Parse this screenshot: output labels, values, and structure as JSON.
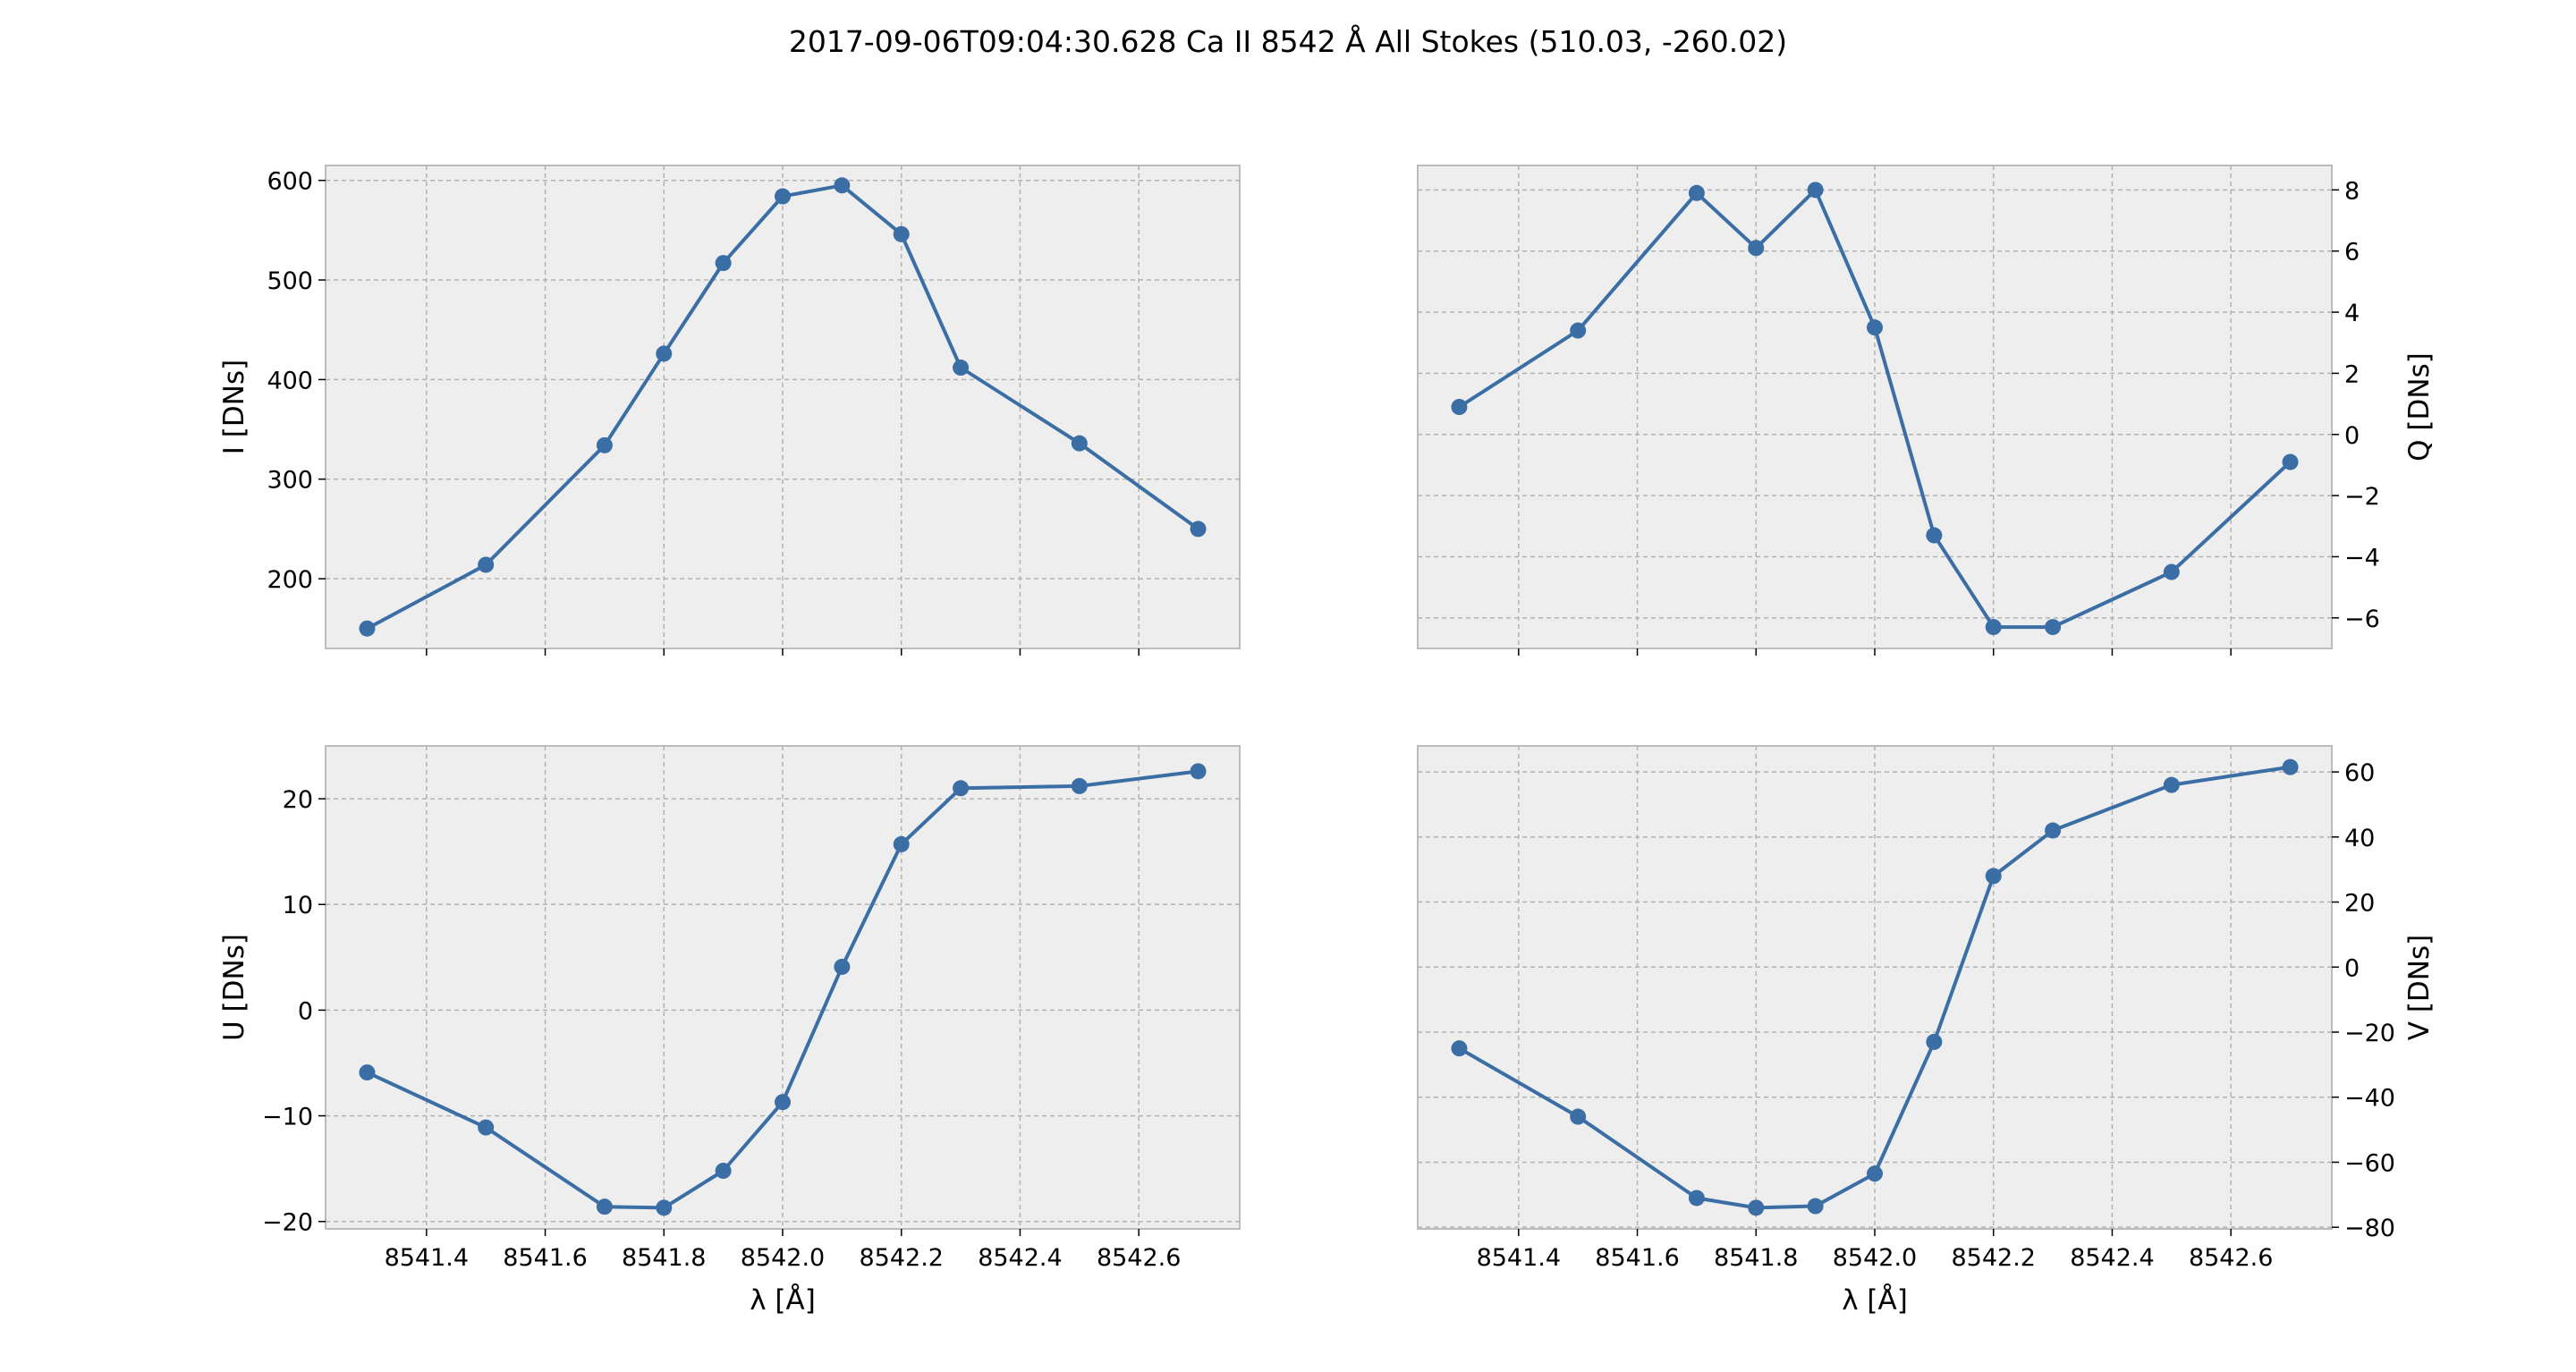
{
  "title": "2017-09-06T09:04:30.628 Ca II 8542 Å All Stokes (510.03, -260.02)",
  "colors": {
    "series": "#3b6ea5",
    "background": "#eeeeee",
    "grid": "#b2b2b2"
  },
  "chart_data": [
    {
      "type": "line",
      "ylabel": "I [DNs]",
      "xlabel": "",
      "y_axis_side": "left",
      "show_xtick_labels": false,
      "xlim": [
        8541.23,
        8542.77
      ],
      "ylim": [
        130,
        615
      ],
      "xticks": [
        8541.4,
        8541.6,
        8541.8,
        8542.0,
        8542.2,
        8542.4,
        8542.6
      ],
      "yticks": [
        200,
        300,
        400,
        500,
        600
      ],
      "grid": true,
      "x": [
        8541.3,
        8541.5,
        8541.7,
        8541.8,
        8541.9,
        8542.0,
        8542.1,
        8542.2,
        8542.3,
        8542.5,
        8542.7
      ],
      "y": [
        150,
        214,
        334,
        426,
        517,
        584,
        595,
        546,
        412,
        336,
        250
      ]
    },
    {
      "type": "line",
      "ylabel": "Q [DNs]",
      "xlabel": "",
      "y_axis_side": "right",
      "show_xtick_labels": false,
      "xlim": [
        8541.23,
        8542.77
      ],
      "ylim": [
        -7.0,
        8.8
      ],
      "xticks": [
        8541.4,
        8541.6,
        8541.8,
        8542.0,
        8542.2,
        8542.4,
        8542.6
      ],
      "yticks": [
        -6,
        -4,
        -2,
        0,
        2,
        4,
        6,
        8
      ],
      "grid": true,
      "x": [
        8541.3,
        8541.5,
        8541.7,
        8541.8,
        8541.9,
        8542.0,
        8542.1,
        8542.2,
        8542.3,
        8542.5,
        8542.7
      ],
      "y": [
        0.9,
        3.4,
        7.9,
        6.1,
        8.0,
        3.5,
        -3.3,
        -6.3,
        -6.3,
        -4.5,
        -0.9
      ]
    },
    {
      "type": "line",
      "ylabel": "U [DNs]",
      "xlabel": "λ [Å]",
      "y_axis_side": "left",
      "show_xtick_labels": true,
      "xlim": [
        8541.23,
        8542.77
      ],
      "ylim": [
        -20.7,
        25.0
      ],
      "xticks": [
        8541.4,
        8541.6,
        8541.8,
        8542.0,
        8542.2,
        8542.4,
        8542.6
      ],
      "yticks": [
        -20,
        -10,
        0,
        10,
        20
      ],
      "grid": true,
      "x": [
        8541.3,
        8541.5,
        8541.7,
        8541.8,
        8541.9,
        8542.0,
        8542.1,
        8542.2,
        8542.3,
        8542.5,
        8542.7
      ],
      "y": [
        -5.9,
        -11.1,
        -18.6,
        -18.7,
        -15.2,
        -8.7,
        4.1,
        15.7,
        21.0,
        21.2,
        22.6
      ]
    },
    {
      "type": "line",
      "ylabel": "V [DNs]",
      "xlabel": "λ [Å]",
      "y_axis_side": "right",
      "show_xtick_labels": true,
      "xlim": [
        8541.23,
        8542.77
      ],
      "ylim": [
        -80.5,
        68.0
      ],
      "xticks": [
        8541.4,
        8541.6,
        8541.8,
        8542.0,
        8542.2,
        8542.4,
        8542.6
      ],
      "yticks": [
        -80,
        -60,
        -40,
        -20,
        0,
        20,
        40,
        60
      ],
      "grid": true,
      "x": [
        8541.3,
        8541.5,
        8541.7,
        8541.8,
        8541.9,
        8542.0,
        8542.1,
        8542.2,
        8542.3,
        8542.5,
        8542.7
      ],
      "y": [
        -25,
        -46,
        -71,
        -74,
        -73.5,
        -63.5,
        -23,
        28,
        42,
        56,
        61.5
      ]
    }
  ]
}
